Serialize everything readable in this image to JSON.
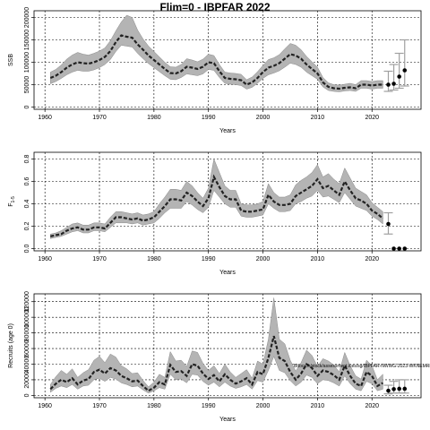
{
  "figure": {
    "title": "Flim=0 - IBPFAR 2022"
  },
  "chart_data": [
    {
      "type": "line",
      "title": "",
      "xlabel": "Years",
      "ylabel": "SSB",
      "xlim": [
        1958,
        2029
      ],
      "ylim": [
        -5000,
        215000
      ],
      "xticks": [
        1960,
        1970,
        1980,
        1990,
        2000,
        2010,
        2020
      ],
      "yticks": [
        0,
        50000,
        100000,
        150000,
        200000
      ],
      "grid": true,
      "series": [
        {
          "x": [
            1961,
            1962,
            1963,
            1964,
            1965,
            1966,
            1967,
            1968,
            1969,
            1970,
            1971,
            1972,
            1973,
            1974,
            1975,
            1976,
            1977,
            1978,
            1979,
            1980,
            1981,
            1982,
            1983,
            1984,
            1985,
            1986,
            1987,
            1988,
            1989,
            1990,
            1991,
            1992,
            1993,
            1994,
            1995,
            1996,
            1997,
            1998,
            1999,
            2000,
            2001,
            2002,
            2003,
            2004,
            2005,
            2006,
            2007,
            2008,
            2009,
            2010,
            2011,
            2012,
            2013,
            2014,
            2015,
            2016,
            2017,
            2018,
            2019,
            2020,
            2021,
            2022
          ],
          "median": [
            65000,
            70000,
            78000,
            88000,
            95000,
            100000,
            98000,
            97000,
            100000,
            105000,
            112000,
            125000,
            145000,
            160000,
            157000,
            155000,
            140000,
            128000,
            115000,
            105000,
            95000,
            85000,
            76000,
            75000,
            80000,
            90000,
            88000,
            85000,
            90000,
            100000,
            98000,
            80000,
            65000,
            63000,
            62000,
            60000,
            50000,
            55000,
            65000,
            78000,
            88000,
            92000,
            98000,
            108000,
            118000,
            115000,
            108000,
            95000,
            85000,
            75000,
            55000,
            45000,
            42000,
            41000,
            43000,
            44000,
            42000,
            50000,
            50000,
            48000,
            50000,
            50000
          ],
          "lower": [
            52000,
            57000,
            64000,
            72000,
            78000,
            82000,
            80000,
            80000,
            83000,
            88000,
            95000,
            106000,
            124000,
            138000,
            136000,
            134000,
            120000,
            108000,
            97000,
            88000,
            79000,
            70000,
            62000,
            61000,
            66000,
            74000,
            72000,
            70000,
            74000,
            84000,
            82000,
            66000,
            53000,
            51000,
            50000,
            48000,
            40000,
            44000,
            53000,
            64000,
            72000,
            76000,
            81000,
            89000,
            98000,
            95000,
            89000,
            78000,
            70000,
            62000,
            45000,
            37000,
            35000,
            34000,
            36000,
            37000,
            35000,
            42000,
            42000,
            40000,
            42000,
            42000
          ],
          "upper": [
            78000,
            84000,
            94000,
            107000,
            116000,
            122000,
            118000,
            116000,
            120000,
            125000,
            132000,
            148000,
            170000,
            190000,
            205000,
            200000,
            172000,
            152000,
            136000,
            124000,
            112000,
            100000,
            90000,
            89000,
            95000,
            108000,
            105000,
            101000,
            107000,
            118000,
            115000,
            95000,
            78000,
            76000,
            75000,
            73000,
            61000,
            67000,
            79000,
            93000,
            106000,
            110000,
            117000,
            130000,
            142000,
            138000,
            128000,
            113000,
            101000,
            89000,
            66000,
            54000,
            50000,
            49000,
            51000,
            53000,
            50000,
            59000,
            59000,
            57000,
            59000,
            59000
          ]
        }
      ],
      "projections": [
        {
          "x": 2023,
          "y": 50000,
          "lo": 35000,
          "hi": 80000
        },
        {
          "x": 2024,
          "y": 52000,
          "lo": 38000,
          "hi": 95000
        },
        {
          "x": 2025,
          "y": 68000,
          "lo": 42000,
          "hi": 120000
        },
        {
          "x": 2026,
          "y": 82000,
          "lo": 47000,
          "hi": 150000
        }
      ]
    },
    {
      "type": "line",
      "title": "",
      "xlabel": "Years",
      "ylabel": "F",
      "ylabel_sub": "1-5",
      "xlim": [
        1958,
        2029
      ],
      "ylim": [
        -0.02,
        0.86
      ],
      "xticks": [
        1960,
        1970,
        1980,
        1990,
        2000,
        2010,
        2020
      ],
      "yticks": [
        0.0,
        0.2,
        0.4,
        0.6,
        0.8
      ],
      "grid": true,
      "series": [
        {
          "x": [
            1961,
            1962,
            1963,
            1964,
            1965,
            1966,
            1967,
            1968,
            1969,
            1970,
            1971,
            1972,
            1973,
            1974,
            1975,
            1976,
            1977,
            1978,
            1979,
            1980,
            1981,
            1982,
            1983,
            1984,
            1985,
            1986,
            1987,
            1988,
            1989,
            1990,
            1991,
            1992,
            1993,
            1994,
            1995,
            1996,
            1997,
            1998,
            1999,
            2000,
            2001,
            2002,
            2003,
            2004,
            2005,
            2006,
            2007,
            2008,
            2009,
            2010,
            2011,
            2012,
            2013,
            2014,
            2015,
            2016,
            2017,
            2018,
            2019,
            2020,
            2021,
            2022
          ],
          "median": [
            0.11,
            0.12,
            0.13,
            0.16,
            0.18,
            0.19,
            0.17,
            0.17,
            0.19,
            0.19,
            0.18,
            0.23,
            0.28,
            0.28,
            0.27,
            0.26,
            0.27,
            0.25,
            0.26,
            0.28,
            0.33,
            0.38,
            0.44,
            0.44,
            0.43,
            0.5,
            0.47,
            0.42,
            0.38,
            0.45,
            0.64,
            0.55,
            0.47,
            0.44,
            0.44,
            0.34,
            0.33,
            0.33,
            0.34,
            0.35,
            0.48,
            0.42,
            0.39,
            0.39,
            0.4,
            0.47,
            0.5,
            0.53,
            0.56,
            0.62,
            0.54,
            0.56,
            0.52,
            0.48,
            0.6,
            0.52,
            0.45,
            0.43,
            0.4,
            0.34,
            0.31,
            0.27
          ],
          "lower": [
            0.09,
            0.1,
            0.11,
            0.13,
            0.15,
            0.16,
            0.14,
            0.14,
            0.16,
            0.16,
            0.15,
            0.19,
            0.23,
            0.23,
            0.23,
            0.22,
            0.23,
            0.21,
            0.22,
            0.23,
            0.27,
            0.32,
            0.36,
            0.36,
            0.36,
            0.42,
            0.39,
            0.35,
            0.32,
            0.37,
            0.52,
            0.46,
            0.4,
            0.37,
            0.37,
            0.29,
            0.28,
            0.28,
            0.29,
            0.3,
            0.4,
            0.36,
            0.33,
            0.33,
            0.34,
            0.4,
            0.42,
            0.45,
            0.47,
            0.52,
            0.46,
            0.47,
            0.44,
            0.41,
            0.5,
            0.44,
            0.38,
            0.36,
            0.34,
            0.29,
            0.26,
            0.22
          ],
          "upper": [
            0.13,
            0.14,
            0.16,
            0.19,
            0.22,
            0.23,
            0.21,
            0.21,
            0.23,
            0.23,
            0.22,
            0.28,
            0.33,
            0.33,
            0.32,
            0.31,
            0.32,
            0.3,
            0.31,
            0.33,
            0.4,
            0.46,
            0.53,
            0.53,
            0.52,
            0.6,
            0.56,
            0.5,
            0.45,
            0.54,
            0.8,
            0.68,
            0.56,
            0.52,
            0.52,
            0.4,
            0.39,
            0.39,
            0.4,
            0.42,
            0.58,
            0.5,
            0.46,
            0.46,
            0.48,
            0.57,
            0.61,
            0.64,
            0.68,
            0.75,
            0.64,
            0.67,
            0.62,
            0.58,
            0.72,
            0.63,
            0.54,
            0.51,
            0.48,
            0.41,
            0.37,
            0.33
          ]
        }
      ],
      "projections": [
        {
          "x": 2023,
          "y": 0.22,
          "lo": 0.13,
          "hi": 0.32
        },
        {
          "x": 2024,
          "y": 0.0,
          "lo": 0.0,
          "hi": 0.0
        },
        {
          "x": 2025,
          "y": 0.0,
          "lo": 0.0,
          "hi": 0.0
        },
        {
          "x": 2026,
          "y": 0.0,
          "lo": 0.0,
          "hi": 0.0
        }
      ]
    },
    {
      "type": "line",
      "title": "",
      "xlabel": "Years",
      "ylabel": "Recruits (age 0)",
      "xlim": [
        1958,
        2029
      ],
      "ylim": [
        -3000,
        130000
      ],
      "xticks": [
        1960,
        1970,
        1980,
        1990,
        2000,
        2010,
        2020
      ],
      "yticks": [
        0,
        20000,
        40000,
        60000,
        80000,
        100000,
        120000
      ],
      "grid": true,
      "annotation": "Bdocs.fr/stock/assessment.ices/sg/IBPFAR-NWWG-2023-WKNEMREF.rf1775",
      "series": [
        {
          "x": [
            1961,
            1962,
            1963,
            1964,
            1965,
            1966,
            1967,
            1968,
            1969,
            1970,
            1971,
            1972,
            1973,
            1974,
            1975,
            1976,
            1977,
            1978,
            1979,
            1980,
            1981,
            1982,
            1983,
            1984,
            1985,
            1986,
            1987,
            1988,
            1989,
            1990,
            1991,
            1992,
            1993,
            1994,
            1995,
            1996,
            1997,
            1998,
            1999,
            2000,
            2001,
            2002,
            2003,
            2004,
            2005,
            2006,
            2007,
            2008,
            2009,
            2010,
            2011,
            2012,
            2013,
            2014,
            2015,
            2016,
            2017,
            2018,
            2019,
            2020,
            2021,
            2022
          ],
          "median": [
            8000,
            15000,
            20000,
            17000,
            22000,
            14000,
            19000,
            21000,
            30000,
            33000,
            28000,
            35000,
            32000,
            25000,
            22000,
            18000,
            19000,
            12000,
            6000,
            10000,
            17000,
            14000,
            39000,
            30000,
            31000,
            25000,
            40000,
            38000,
            28000,
            21000,
            26000,
            18000,
            27000,
            20000,
            15000,
            18000,
            22000,
            14000,
            30000,
            27000,
            48000,
            76000,
            48000,
            44000,
            30000,
            20000,
            28000,
            40000,
            35000,
            25000,
            32000,
            30000,
            26000,
            20000,
            38000,
            25000,
            15000,
            12000,
            30000,
            25000,
            12000,
            16000
          ],
          "lower": [
            4000,
            9000,
            12000,
            10000,
            14000,
            8000,
            12000,
            13000,
            20000,
            22000,
            18000,
            23000,
            21000,
            16000,
            14000,
            11000,
            12000,
            7000,
            3000,
            6000,
            10000,
            8000,
            27000,
            20000,
            21000,
            16000,
            27000,
            26000,
            18000,
            13000,
            17000,
            11000,
            17000,
            12000,
            9000,
            11000,
            14000,
            8000,
            19000,
            17000,
            32000,
            50000,
            32000,
            29000,
            19000,
            12000,
            17000,
            26000,
            23000,
            15000,
            20000,
            19000,
            16000,
            12000,
            25000,
            15000,
            8000,
            6000,
            18000,
            15000,
            6000,
            8000
          ],
          "upper": [
            14000,
            24000,
            32000,
            27000,
            34000,
            23000,
            29000,
            33000,
            45000,
            50000,
            42000,
            53000,
            49000,
            38000,
            34000,
            28000,
            29000,
            19000,
            11000,
            17000,
            27000,
            23000,
            56000,
            44000,
            45000,
            37000,
            57000,
            55000,
            41000,
            32000,
            38000,
            28000,
            40000,
            30000,
            23000,
            28000,
            33000,
            22000,
            44000,
            40000,
            72000,
            125000,
            72000,
            66000,
            45000,
            31000,
            42000,
            58000,
            51000,
            37000,
            47000,
            44000,
            39000,
            30000,
            55000,
            38000,
            25000,
            21000,
            45000,
            38000,
            20000,
            27000
          ]
        }
      ],
      "projections": [
        {
          "x": 2023,
          "y": 6000,
          "lo": 2000,
          "hi": 13000
        },
        {
          "x": 2024,
          "y": 8000,
          "lo": 3000,
          "hi": 18000
        },
        {
          "x": 2025,
          "y": 8500,
          "lo": 3000,
          "hi": 20000
        },
        {
          "x": 2026,
          "y": 8500,
          "lo": 3000,
          "hi": 20000
        }
      ]
    }
  ]
}
